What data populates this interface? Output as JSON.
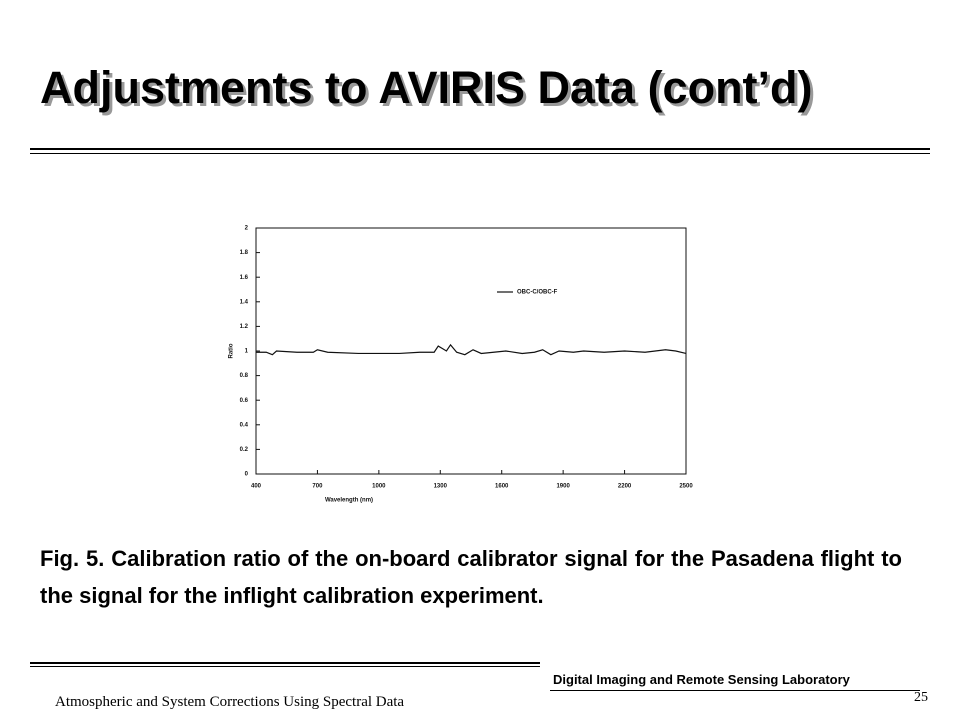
{
  "header": {
    "title": "Adjustments to AVIRIS Data (cont’d)"
  },
  "chart_data": {
    "type": "line",
    "xlabel": "Wavelength (nm)",
    "ylabel": "Ratio",
    "xlim": [
      400,
      2500
    ],
    "xticks": [
      400,
      700,
      1000,
      1300,
      1600,
      1900,
      2200,
      2500
    ],
    "ylim": [
      0,
      2
    ],
    "yticks": [
      0,
      0.2,
      0.4,
      0.6,
      0.8,
      1,
      1.2,
      1.4,
      1.6,
      1.8,
      2
    ],
    "legend": "upper-right",
    "x": [
      400,
      450,
      480,
      500,
      600,
      680,
      700,
      750,
      900,
      1000,
      1100,
      1200,
      1270,
      1290,
      1310,
      1330,
      1350,
      1380,
      1420,
      1460,
      1500,
      1560,
      1620,
      1700,
      1760,
      1800,
      1840,
      1880,
      1950,
      2000,
      2100,
      2200,
      2300,
      2400,
      2450,
      2500
    ],
    "series": [
      {
        "name": "OBC-C/OBC-F",
        "color": "#111111",
        "values": [
          0.99,
          0.99,
          0.97,
          1.0,
          0.99,
          0.99,
          1.01,
          0.99,
          0.98,
          0.98,
          0.98,
          0.99,
          0.99,
          1.04,
          1.02,
          1.0,
          1.05,
          0.99,
          0.97,
          1.01,
          0.98,
          0.99,
          1.0,
          0.98,
          0.99,
          1.01,
          0.97,
          1.0,
          0.99,
          1.0,
          0.99,
          1.0,
          0.99,
          1.01,
          1.0,
          0.98
        ]
      }
    ]
  },
  "caption": "Fig. 5. Calibration ratio of the on-board calibrator signal for the Pasadena flight to the signal for the inflight calibration experiment.",
  "footer": {
    "lab": "Digital Imaging and Remote Sensing Laboratory",
    "page": "25",
    "course": "Atmospheric and System Corrections Using Spectral Data"
  }
}
